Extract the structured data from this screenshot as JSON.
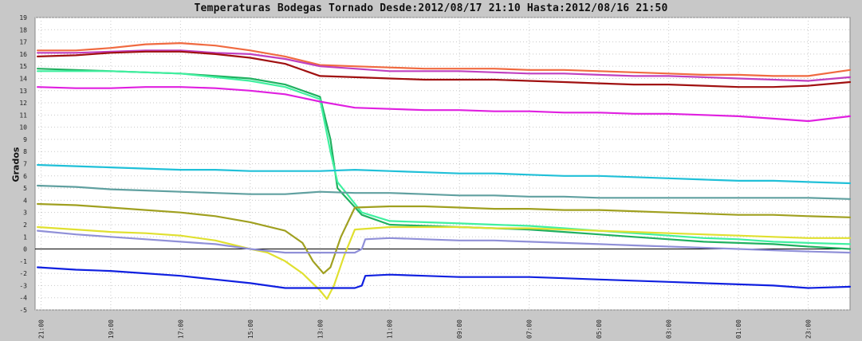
{
  "chart_data": {
    "type": "line",
    "title": "Temperaturas Bodegas Tornado Desde:2012/08/17 21:10 Hasta:2012/08/16 21:50",
    "ylabel": "Grados",
    "xlabel": "",
    "ylim": [
      -5,
      19
    ],
    "yticks": [
      -5,
      -4,
      -3,
      -2,
      -1,
      0,
      1,
      2,
      3,
      4,
      5,
      6,
      7,
      8,
      9,
      10,
      11,
      12,
      13,
      14,
      15,
      16,
      17,
      18,
      19
    ],
    "xticks": [
      "21:00",
      "19:00",
      "17:00",
      "15:00",
      "13:00",
      "11:00",
      "09:00",
      "07:00",
      "05:00",
      "03:00",
      "01:00",
      "23:00"
    ],
    "xtick_positions": [
      0,
      2,
      4,
      6,
      8,
      10,
      12,
      14,
      16,
      18,
      20,
      22
    ],
    "xlim": [
      -0.17,
      23.2
    ],
    "grid": true,
    "series": [
      {
        "color": "#f06a40",
        "x": [
          -0.1,
          1,
          2,
          3,
          4,
          5,
          6,
          7,
          8,
          9,
          10,
          11,
          12,
          13,
          14,
          15,
          16,
          17,
          18,
          19,
          20,
          21,
          22,
          23.2
        ],
        "values": [
          16.3,
          16.3,
          16.5,
          16.8,
          16.9,
          16.7,
          16.3,
          15.8,
          15.1,
          15.0,
          14.9,
          14.8,
          14.8,
          14.8,
          14.7,
          14.7,
          14.6,
          14.5,
          14.4,
          14.3,
          14.3,
          14.2,
          14.2,
          14.7
        ]
      },
      {
        "color": "#c040c0",
        "x": [
          -0.1,
          1,
          2,
          3,
          4,
          5,
          6,
          7,
          8,
          9,
          10,
          11,
          12,
          13,
          14,
          15,
          16,
          17,
          18,
          19,
          20,
          21,
          22,
          23.2
        ],
        "values": [
          16.1,
          16.1,
          16.2,
          16.3,
          16.3,
          16.1,
          16.0,
          15.6,
          15.0,
          14.8,
          14.6,
          14.6,
          14.6,
          14.5,
          14.4,
          14.4,
          14.3,
          14.2,
          14.2,
          14.1,
          14.0,
          13.9,
          13.8,
          14.1
        ]
      },
      {
        "color": "#a01010",
        "x": [
          -0.1,
          1,
          2,
          3,
          4,
          5,
          6,
          7,
          8,
          9,
          10,
          11,
          12,
          13,
          14,
          15,
          16,
          17,
          18,
          19,
          20,
          21,
          22,
          23.2
        ],
        "values": [
          15.8,
          15.9,
          16.1,
          16.2,
          16.2,
          16.0,
          15.7,
          15.2,
          14.2,
          14.1,
          14.0,
          13.9,
          13.9,
          13.9,
          13.8,
          13.7,
          13.6,
          13.5,
          13.5,
          13.4,
          13.3,
          13.3,
          13.4,
          13.7
        ]
      },
      {
        "color": "#20b060",
        "x": [
          -0.1,
          1,
          2,
          3,
          4,
          5,
          6,
          7,
          8,
          8.3,
          8.5,
          9.2,
          10,
          11,
          12,
          13,
          14,
          15,
          16,
          17,
          18,
          19,
          20,
          21,
          22,
          23.2
        ],
        "values": [
          14.8,
          14.7,
          14.6,
          14.5,
          14.4,
          14.2,
          14.0,
          13.5,
          12.5,
          9.0,
          5.0,
          2.8,
          2.0,
          1.9,
          1.8,
          1.7,
          1.6,
          1.4,
          1.2,
          1.0,
          0.8,
          0.6,
          0.5,
          0.4,
          0.2,
          0.0
        ]
      },
      {
        "color": "#40f0a0",
        "x": [
          -0.1,
          1,
          2,
          3,
          4,
          5,
          6,
          7,
          8,
          8.3,
          8.5,
          9.2,
          10,
          11,
          12,
          13,
          14,
          15,
          16,
          17,
          18,
          19,
          20,
          21,
          22,
          23.2
        ],
        "values": [
          14.6,
          14.6,
          14.6,
          14.5,
          14.4,
          14.1,
          13.8,
          13.3,
          12.3,
          8.0,
          5.5,
          3.0,
          2.3,
          2.2,
          2.1,
          2.0,
          1.9,
          1.7,
          1.5,
          1.3,
          1.1,
          0.9,
          0.8,
          0.6,
          0.5,
          0.4
        ]
      },
      {
        "color": "#e020e0",
        "x": [
          -0.1,
          1,
          2,
          3,
          4,
          5,
          6,
          7,
          8,
          9,
          10,
          11,
          12,
          13,
          14,
          15,
          16,
          17,
          18,
          19,
          20,
          21,
          22,
          23.2
        ],
        "values": [
          13.3,
          13.2,
          13.2,
          13.3,
          13.3,
          13.2,
          13.0,
          12.7,
          12.1,
          11.6,
          11.5,
          11.4,
          11.4,
          11.3,
          11.3,
          11.2,
          11.2,
          11.1,
          11.1,
          11.0,
          10.9,
          10.7,
          10.5,
          10.9
        ]
      },
      {
        "color": "#20c0d8",
        "x": [
          -0.1,
          1,
          2,
          3,
          4,
          5,
          6,
          7,
          8,
          9,
          10,
          11,
          12,
          13,
          14,
          15,
          16,
          17,
          18,
          19,
          20,
          21,
          22,
          23.2
        ],
        "values": [
          6.9,
          6.8,
          6.7,
          6.6,
          6.5,
          6.5,
          6.4,
          6.4,
          6.4,
          6.5,
          6.4,
          6.3,
          6.2,
          6.2,
          6.1,
          6.0,
          6.0,
          5.9,
          5.8,
          5.7,
          5.6,
          5.6,
          5.5,
          5.4
        ]
      },
      {
        "color": "#60a0a0",
        "x": [
          -0.1,
          1,
          2,
          3,
          4,
          5,
          6,
          7,
          8,
          9,
          10,
          11,
          12,
          13,
          14,
          15,
          16,
          17,
          18,
          19,
          20,
          21,
          22,
          23.2
        ],
        "values": [
          5.2,
          5.1,
          4.9,
          4.8,
          4.7,
          4.6,
          4.5,
          4.5,
          4.7,
          4.6,
          4.6,
          4.5,
          4.4,
          4.4,
          4.3,
          4.3,
          4.2,
          4.2,
          4.2,
          4.2,
          4.2,
          4.2,
          4.2,
          4.1
        ]
      },
      {
        "color": "#a0a020",
        "x": [
          -0.1,
          1,
          2,
          3,
          4,
          5,
          6,
          7,
          7.5,
          7.8,
          8.1,
          8.3,
          8.6,
          9.0,
          10,
          11,
          12,
          13,
          14,
          15,
          16,
          17,
          18,
          19,
          20,
          21,
          22,
          23.2
        ],
        "values": [
          3.7,
          3.6,
          3.4,
          3.2,
          3.0,
          2.7,
          2.2,
          1.5,
          0.5,
          -1.0,
          -2.0,
          -1.5,
          1.0,
          3.4,
          3.5,
          3.5,
          3.4,
          3.3,
          3.3,
          3.2,
          3.2,
          3.1,
          3.0,
          2.9,
          2.8,
          2.8,
          2.7,
          2.6
        ]
      },
      {
        "color": "#e0e030",
        "x": [
          -0.1,
          1,
          2,
          3,
          4,
          5,
          6,
          6.5,
          7,
          7.5,
          8,
          8.2,
          8.4,
          8.7,
          9.0,
          10,
          11,
          12,
          13,
          14,
          15,
          16,
          17,
          18,
          19,
          20,
          21,
          22,
          23.2
        ],
        "values": [
          1.8,
          1.6,
          1.4,
          1.3,
          1.1,
          0.7,
          0.0,
          -0.3,
          -1.0,
          -2.0,
          -3.4,
          -4.1,
          -3.0,
          -0.5,
          1.6,
          1.8,
          1.8,
          1.8,
          1.7,
          1.7,
          1.6,
          1.5,
          1.4,
          1.3,
          1.2,
          1.1,
          1.0,
          0.9,
          0.9
        ]
      },
      {
        "color": "#9090d8",
        "x": [
          -0.1,
          1,
          2,
          3,
          4,
          5,
          6,
          7,
          8,
          9,
          9.2,
          9.3,
          10,
          11,
          12,
          13,
          14,
          15,
          16,
          17,
          18,
          19,
          20,
          21,
          22,
          23.2
        ],
        "values": [
          1.5,
          1.2,
          1.0,
          0.8,
          0.6,
          0.4,
          0.0,
          -0.3,
          -0.3,
          -0.3,
          0.0,
          0.8,
          0.9,
          0.8,
          0.7,
          0.7,
          0.6,
          0.5,
          0.4,
          0.3,
          0.2,
          0.1,
          0.0,
          -0.1,
          -0.2,
          -0.3
        ]
      },
      {
        "color": "#1020e0",
        "x": [
          -0.1,
          1,
          2,
          3,
          4,
          5,
          6,
          7,
          8,
          9,
          9.2,
          9.3,
          10,
          11,
          12,
          13,
          14,
          15,
          16,
          17,
          18,
          19,
          20,
          21,
          22,
          23.2
        ],
        "values": [
          -1.5,
          -1.7,
          -1.8,
          -2.0,
          -2.2,
          -2.5,
          -2.8,
          -3.2,
          -3.2,
          -3.2,
          -3.0,
          -2.2,
          -2.1,
          -2.2,
          -2.3,
          -2.3,
          -2.3,
          -2.4,
          -2.5,
          -2.6,
          -2.7,
          -2.8,
          -2.9,
          -3.0,
          -3.2,
          -3.1
        ]
      }
    ]
  }
}
